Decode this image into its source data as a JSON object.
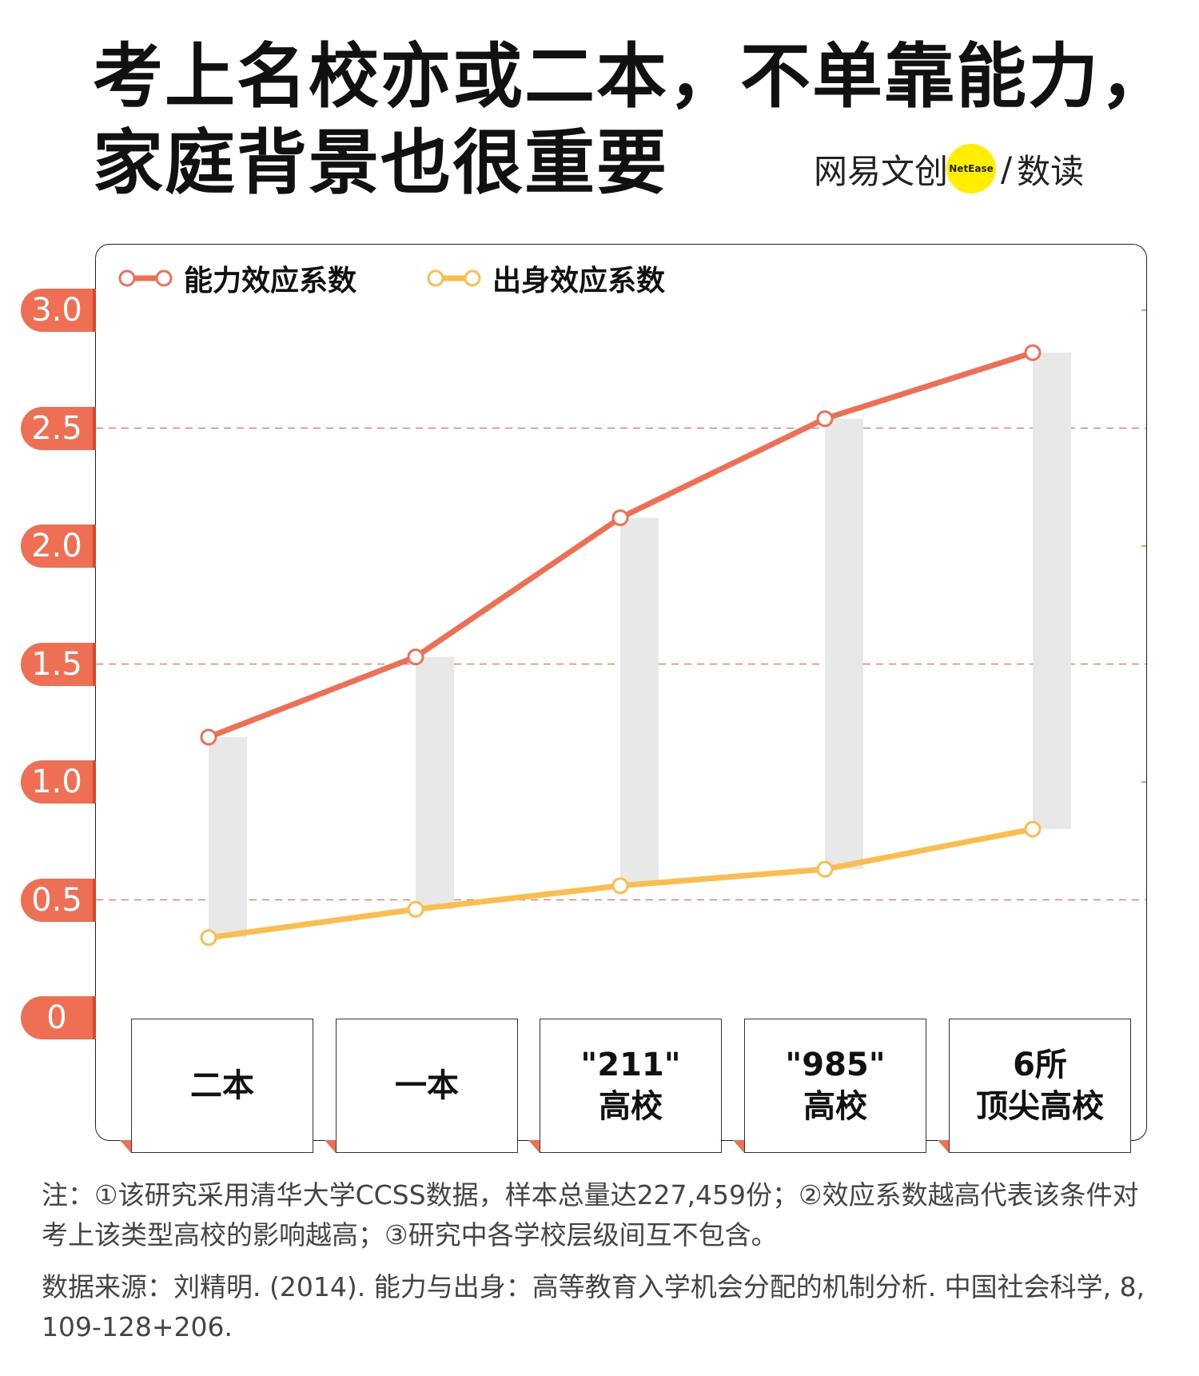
{
  "header": {
    "title_line1": "考上名校亦或二本，不单靠能力，",
    "title_line2": "家庭背景也很重要",
    "brand_left": "网易文创",
    "brand_badge": "NetEase",
    "brand_sep": "/",
    "brand_right": "数读"
  },
  "colors": {
    "ability": "#ef6f55",
    "origin": "#fbbd4d",
    "gap_bar": "#e8e8e8",
    "axis_label_bg": "#ef6f55"
  },
  "chart_data": {
    "type": "line",
    "categories": [
      "二本",
      "一本",
      "\"211\"\n高校",
      "\"985\"\n高校",
      "6所\n顶尖高校"
    ],
    "series": [
      {
        "name": "能力效应系数",
        "values": [
          1.19,
          1.53,
          2.12,
          2.54,
          2.82
        ]
      },
      {
        "name": "出身效应系数",
        "values": [
          0.34,
          0.46,
          0.56,
          0.63,
          0.8
        ]
      }
    ],
    "yticks": [
      "0",
      "0.5",
      "1.0",
      "1.5",
      "2.0",
      "2.5",
      "3.0"
    ],
    "ytick_values": [
      0,
      0.5,
      1,
      1.5,
      2,
      2.5,
      3
    ],
    "ylim": [
      0,
      3
    ],
    "grid": "dashed horizontal",
    "legend": "top-left"
  },
  "notes": {
    "note": "注：①该研究采用清华大学CCSS数据，样本总量达227,459份；②效应系数越高代表该条件对考上该类型高校的影响越高；③研究中各学校层级间互不包含。",
    "source": "数据来源：刘精明. (2014). 能力与出身：高等教育入学机会分配的机制分析. 中国社会科学, 8, 109-128+206."
  }
}
